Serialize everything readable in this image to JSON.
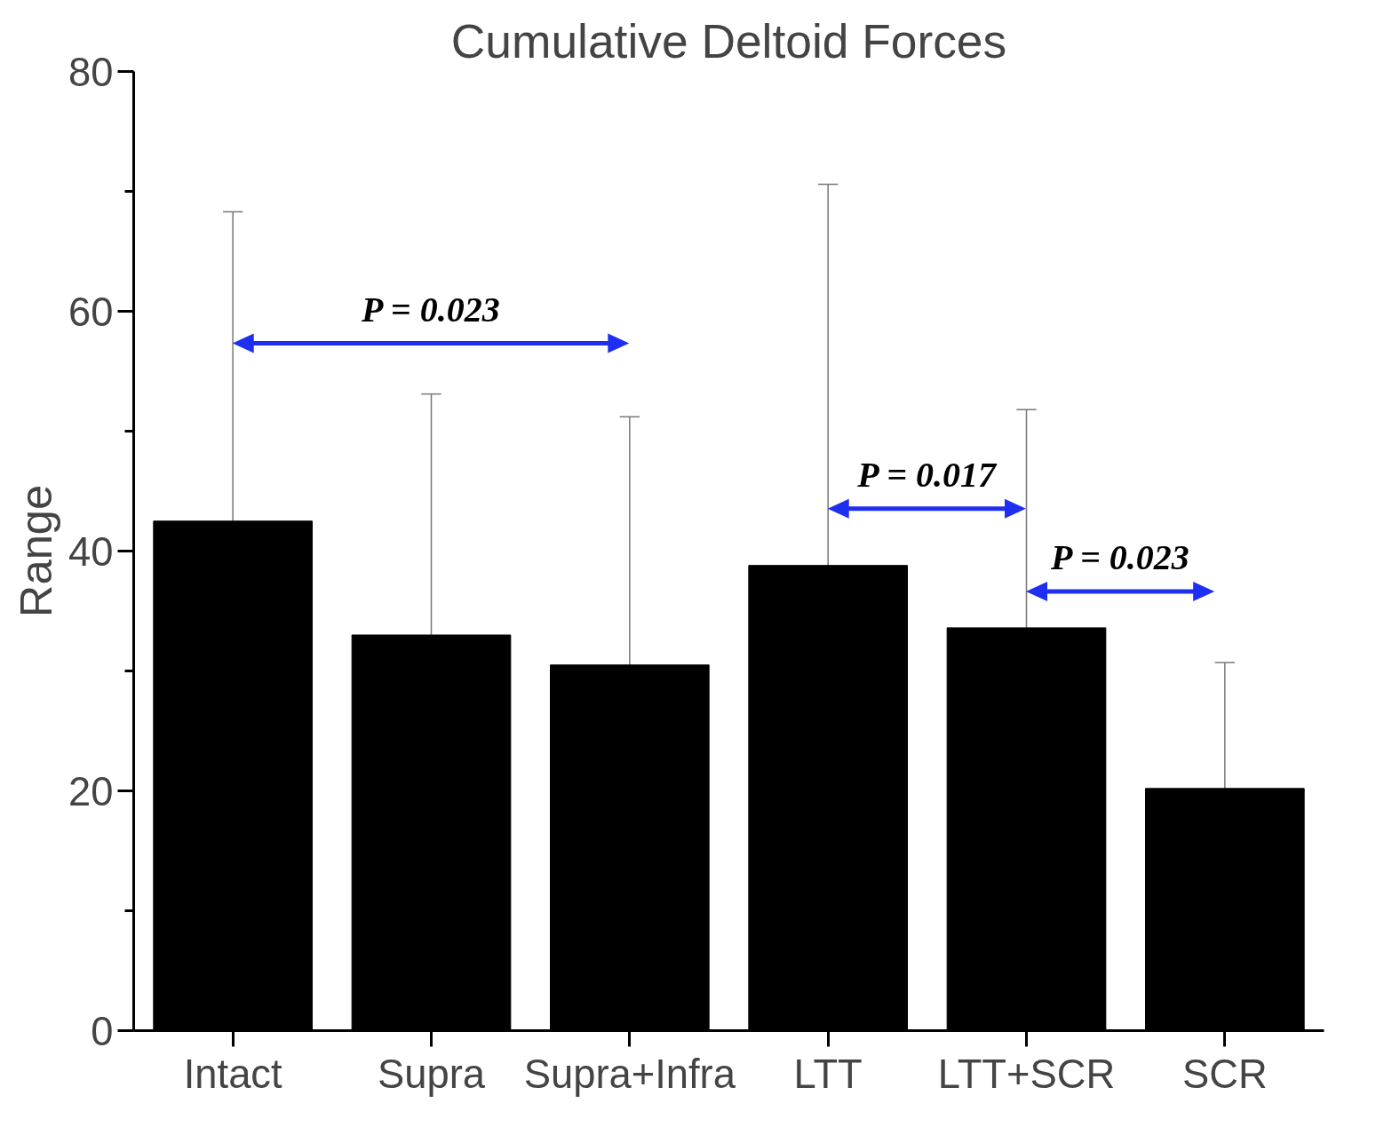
{
  "chart_data": {
    "type": "bar",
    "title": "Cumulative Deltoid Forces",
    "ylabel": "Range",
    "categories": [
      "Intact",
      "Supra",
      "Supra+Infra",
      "LTT",
      "LTT+SCR",
      "SCR"
    ],
    "values": [
      42.5,
      33.0,
      30.5,
      38.8,
      33.6,
      20.2
    ],
    "errors": [
      [
        42.5,
        68.3
      ],
      [
        33.0,
        53.1
      ],
      [
        30.5,
        51.2
      ],
      [
        38.8,
        70.6
      ],
      [
        33.6,
        51.8
      ],
      [
        20.2,
        30.7
      ]
    ],
    "color": "#000000",
    "ylim": [
      0,
      80
    ],
    "yticks": [
      0,
      {
        "value": 10,
        "label": null
      },
      20,
      {
        "value": 30,
        "label": null
      },
      40,
      {
        "value": 50,
        "label": null
      },
      60,
      {
        "value": 70,
        "label": null
      },
      80
    ],
    "grid": false,
    "annotations": [
      "P = 0.023",
      "P = 0.017",
      "P = 0.023"
    ]
  }
}
